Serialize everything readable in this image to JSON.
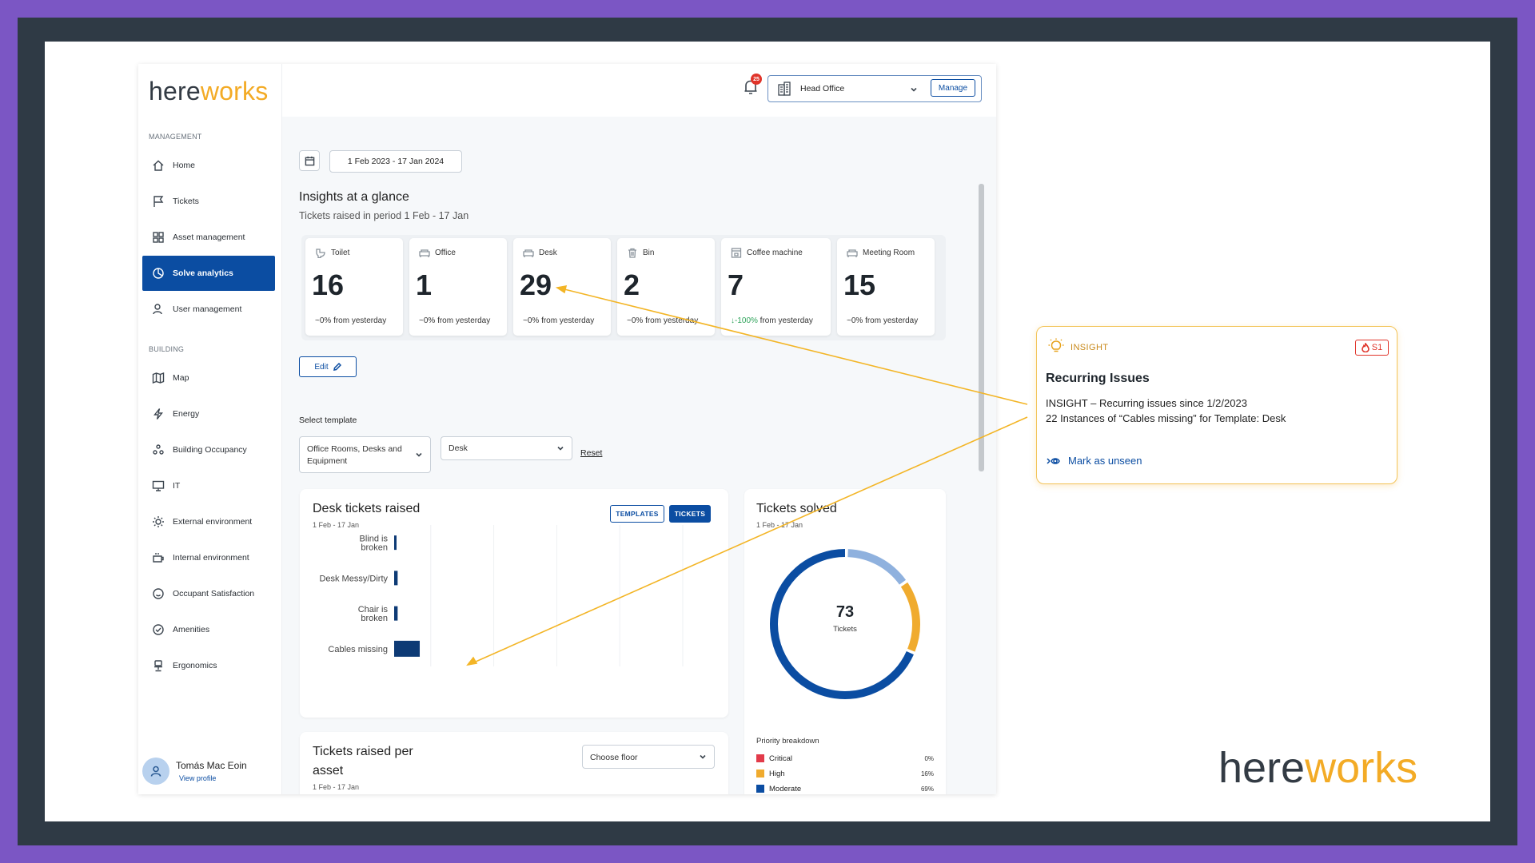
{
  "brand": {
    "here": "here",
    "works": "works"
  },
  "sidebar": {
    "management_label": "MANAGEMENT",
    "building_label": "BUILDING",
    "items": [
      {
        "label": "Home",
        "icon": "home-icon"
      },
      {
        "label": "Tickets",
        "icon": "flag-icon"
      },
      {
        "label": "Asset management",
        "icon": "grid-icon"
      },
      {
        "label": "Solve analytics",
        "icon": "pie-chart-icon",
        "active": true
      },
      {
        "label": "User management",
        "icon": "user-icon"
      },
      {
        "label": "Map",
        "icon": "map-icon"
      },
      {
        "label": "Energy",
        "icon": "lightning-icon"
      },
      {
        "label": "Building Occupancy",
        "icon": "people-icon"
      },
      {
        "label": "IT",
        "icon": "monitor-icon"
      },
      {
        "label": "External environment",
        "icon": "sun-icon"
      },
      {
        "label": "Internal environment",
        "icon": "cup-icon"
      },
      {
        "label": "Occupant Satisfaction",
        "icon": "smile-icon"
      },
      {
        "label": "Amenities",
        "icon": "check-circle-icon"
      },
      {
        "label": "Ergonomics",
        "icon": "chair-icon"
      }
    ],
    "user": {
      "name": "Tomás Mac Eoin",
      "view_profile": "View profile"
    }
  },
  "topbar": {
    "notification_count": "25",
    "site": "Head Office",
    "manage_label": "Manage"
  },
  "filters": {
    "date_range": "1 Feb 2023 - 17 Jan 2024"
  },
  "insights": {
    "title": "Insights at a glance",
    "subtitle": "Tickets raised in period 1 Feb - 17 Jan",
    "cards": [
      {
        "label": "Toilet",
        "value": "16",
        "change": "~0%",
        "change_suffix": " from yesterday",
        "down": false,
        "icon": "toilet-icon"
      },
      {
        "label": "Office",
        "value": "1",
        "change": "~0%",
        "change_suffix": " from yesterday",
        "down": false,
        "icon": "sofa-icon"
      },
      {
        "label": "Desk",
        "value": "29",
        "change": "~0%",
        "change_suffix": " from yesterday",
        "down": false,
        "icon": "sofa-icon"
      },
      {
        "label": "Bin",
        "value": "2",
        "change": "~0%",
        "change_suffix": " from yesterday",
        "down": false,
        "icon": "trash-icon"
      },
      {
        "label": "Coffee machine",
        "value": "7",
        "change": "↓-100%",
        "change_suffix": " from yesterday",
        "down": true,
        "icon": "coffee-machine-icon"
      },
      {
        "label": "Meeting Room",
        "value": "15",
        "change": "~0%",
        "change_suffix": " from yesterday",
        "down": false,
        "icon": "sofa-icon"
      }
    ],
    "edit_label": "Edit"
  },
  "template": {
    "label": "Select template",
    "select1_line1": "Office Rooms, Desks and",
    "select1_line2": "Equipment",
    "select2": "Desk",
    "reset": "Reset"
  },
  "desk_panel": {
    "title": "Desk tickets raised",
    "subtitle": "1 Feb - 17 Jan",
    "templates_label": "TEMPLATES",
    "tickets_label": "TICKETS"
  },
  "solved_panel": {
    "title": "Tickets solved",
    "subtitle": "1 Feb - 17 Jan",
    "total": "73",
    "total_label": "Tickets",
    "priority_title": "Priority breakdown",
    "priorities": [
      {
        "name": "Critical",
        "value": "0%",
        "color": "#e23b4a"
      },
      {
        "name": "High",
        "value": "16%",
        "color": "#f0ab2e"
      },
      {
        "name": "Moderate",
        "value": "69%",
        "color": "#0b4da2"
      }
    ]
  },
  "asset_panel": {
    "title_line1": "Tickets raised per",
    "title_line2": "asset",
    "subtitle": "1 Feb - 17 Jan",
    "floor_placeholder": "Choose floor"
  },
  "insight_card": {
    "kicker": "INSIGHT",
    "severity": "S1",
    "title": "Recurring Issues",
    "line1": "INSIGHT – Recurring issues since 1/2/2023",
    "line2": "22 Instances of “Cables missing” for Template: Desk",
    "action": "Mark as unseen"
  },
  "chart_data": [
    {
      "type": "bar",
      "orientation": "horizontal",
      "title": "Desk tickets raised",
      "subtitle": "1 Feb - 17 Jan",
      "categories": [
        "Blind is broken",
        "Desk Messy/Dirty",
        "Chair is broken",
        "Cables missing"
      ],
      "values": [
        2,
        3,
        3,
        22
      ],
      "xlim": [
        0,
        130
      ],
      "grid": true,
      "color": "#0d3a75"
    },
    {
      "type": "pie",
      "variant": "donut",
      "title": "Tickets solved",
      "subtitle": "1 Feb - 17 Jan",
      "center_value": 73,
      "center_label": "Tickets",
      "series": [
        {
          "name": "Critical",
          "value": 0,
          "color": "#e23b4a"
        },
        {
          "name": "High",
          "value": 16,
          "color": "#f0ab2e"
        },
        {
          "name": "Moderate",
          "value": 69,
          "color": "#0b4da2"
        },
        {
          "value": 15,
          "color": "#8fb1de"
        }
      ]
    }
  ]
}
